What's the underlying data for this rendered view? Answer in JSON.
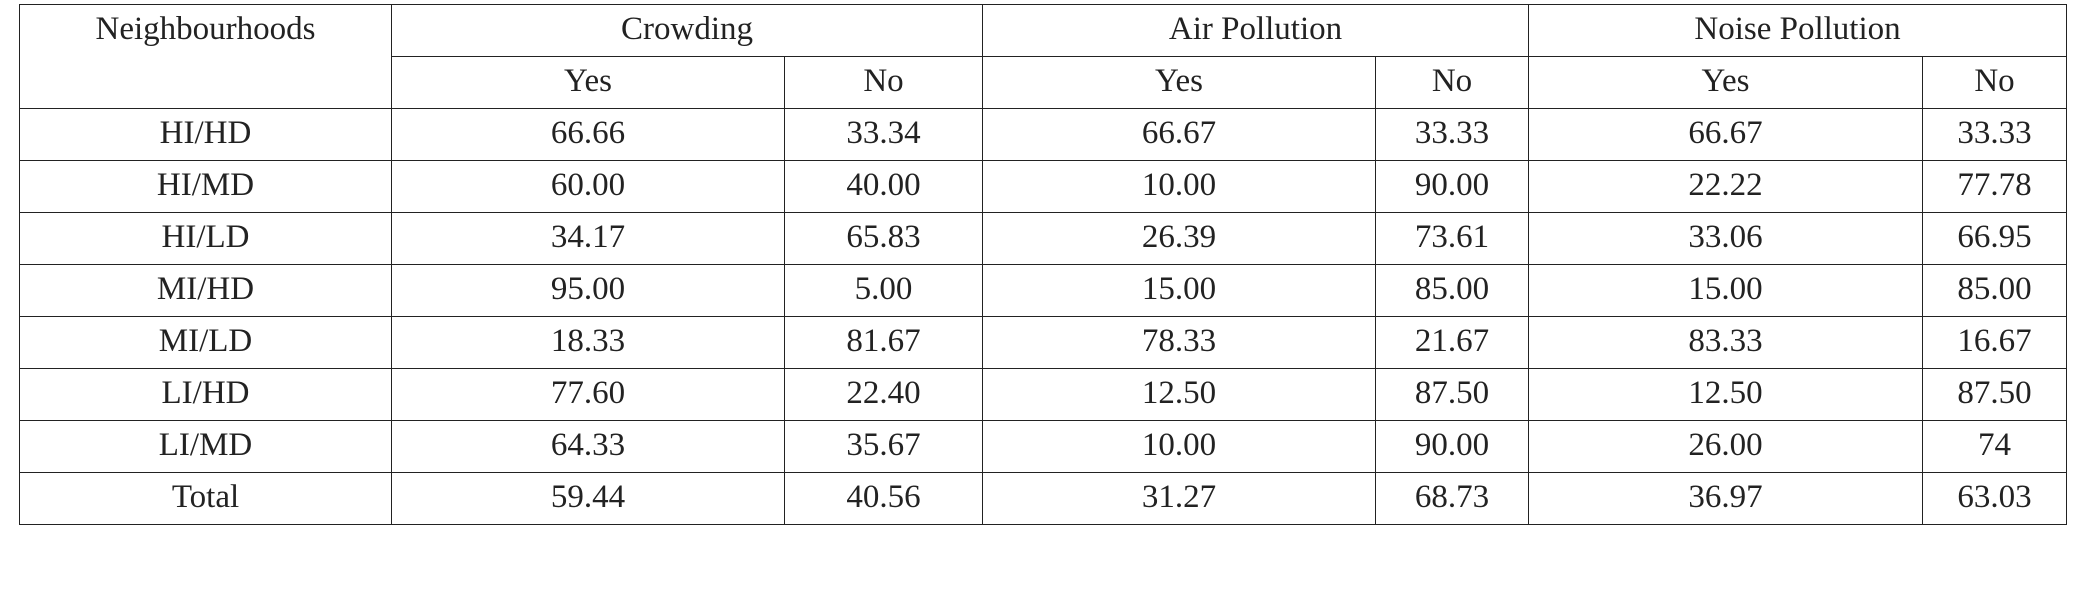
{
  "table": {
    "header": {
      "first": "Neighbourhoods",
      "groups": [
        {
          "name": "Crowding",
          "sub": [
            "Yes",
            "No"
          ]
        },
        {
          "name": "Air Pollution",
          "sub": [
            "Yes",
            "No"
          ]
        },
        {
          "name": "Noise Pollution",
          "sub": [
            "Yes",
            "No"
          ]
        }
      ]
    },
    "rows": [
      [
        "HI/HD",
        "66.66",
        "33.34",
        "66.67",
        "33.33",
        "66.67",
        "33.33"
      ],
      [
        "HI/MD",
        "60.00",
        "40.00",
        "10.00",
        "90.00",
        "22.22",
        "77.78"
      ],
      [
        "HI/LD",
        "34.17",
        "65.83",
        "26.39",
        "73.61",
        "33.06",
        "66.95"
      ],
      [
        "MI/HD",
        "95.00",
        "5.00",
        "15.00",
        "85.00",
        "15.00",
        "85.00"
      ],
      [
        "MI/LD",
        "18.33",
        "81.67",
        "78.33",
        "21.67",
        "83.33",
        "16.67"
      ],
      [
        "LI/HD",
        "77.60",
        "22.40",
        "12.50",
        "87.50",
        "12.50",
        "87.50"
      ],
      [
        "LI/MD",
        "64.33",
        "35.67",
        "10.00",
        "90.00",
        "26.00",
        "74"
      ],
      [
        "Total",
        "59.44",
        "40.56",
        "31.27",
        "68.73",
        "36.97",
        "63.03"
      ]
    ]
  }
}
